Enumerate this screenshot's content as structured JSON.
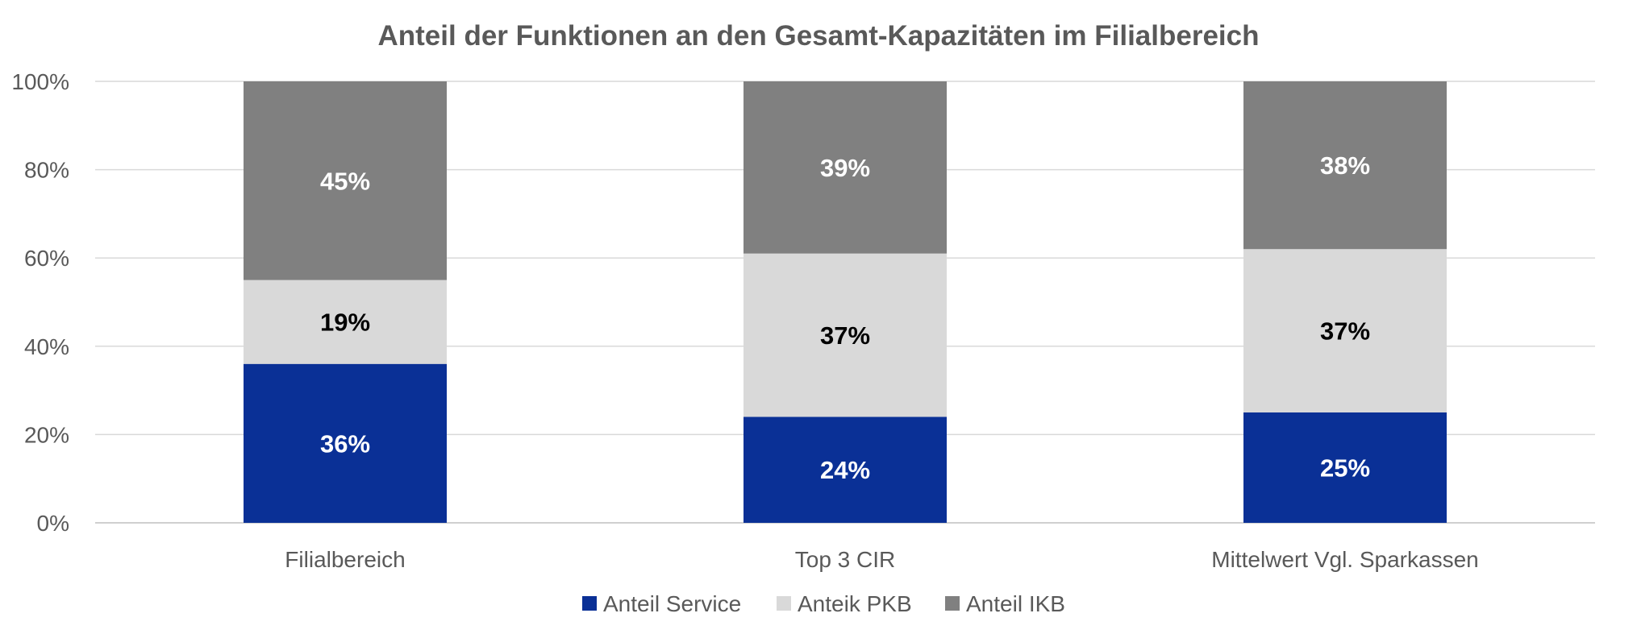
{
  "chart_data": {
    "type": "bar",
    "stacked": true,
    "title": "Anteil der Funktionen an den Gesamt-Kapazitäten im Filialbereich",
    "xlabel": "",
    "ylabel": "",
    "categories": [
      "Filialbereich",
      "Top 3 CIR",
      "Mittelwert Vgl. Sparkassen"
    ],
    "ylim": [
      0,
      100
    ],
    "yticks": [
      "0%",
      "20%",
      "40%",
      "60%",
      "80%",
      "100%"
    ],
    "grid": true,
    "legend_position": "bottom",
    "series": [
      {
        "name": "Anteil Service",
        "values": [
          36,
          24,
          25
        ],
        "labels": [
          "36%",
          "24%",
          "25%"
        ],
        "color": "#0a3096",
        "label_color": "#ffffff"
      },
      {
        "name": "Anteik PKB",
        "values": [
          19,
          37,
          37
        ],
        "labels": [
          "19%",
          "37%",
          "37%"
        ],
        "color": "#d9d9d9",
        "label_color": "#000000"
      },
      {
        "name": "Anteil IKB",
        "values": [
          45,
          39,
          38
        ],
        "labels": [
          "45%",
          "39%",
          "38%"
        ],
        "color": "#808080",
        "label_color": "#ffffff"
      }
    ]
  }
}
